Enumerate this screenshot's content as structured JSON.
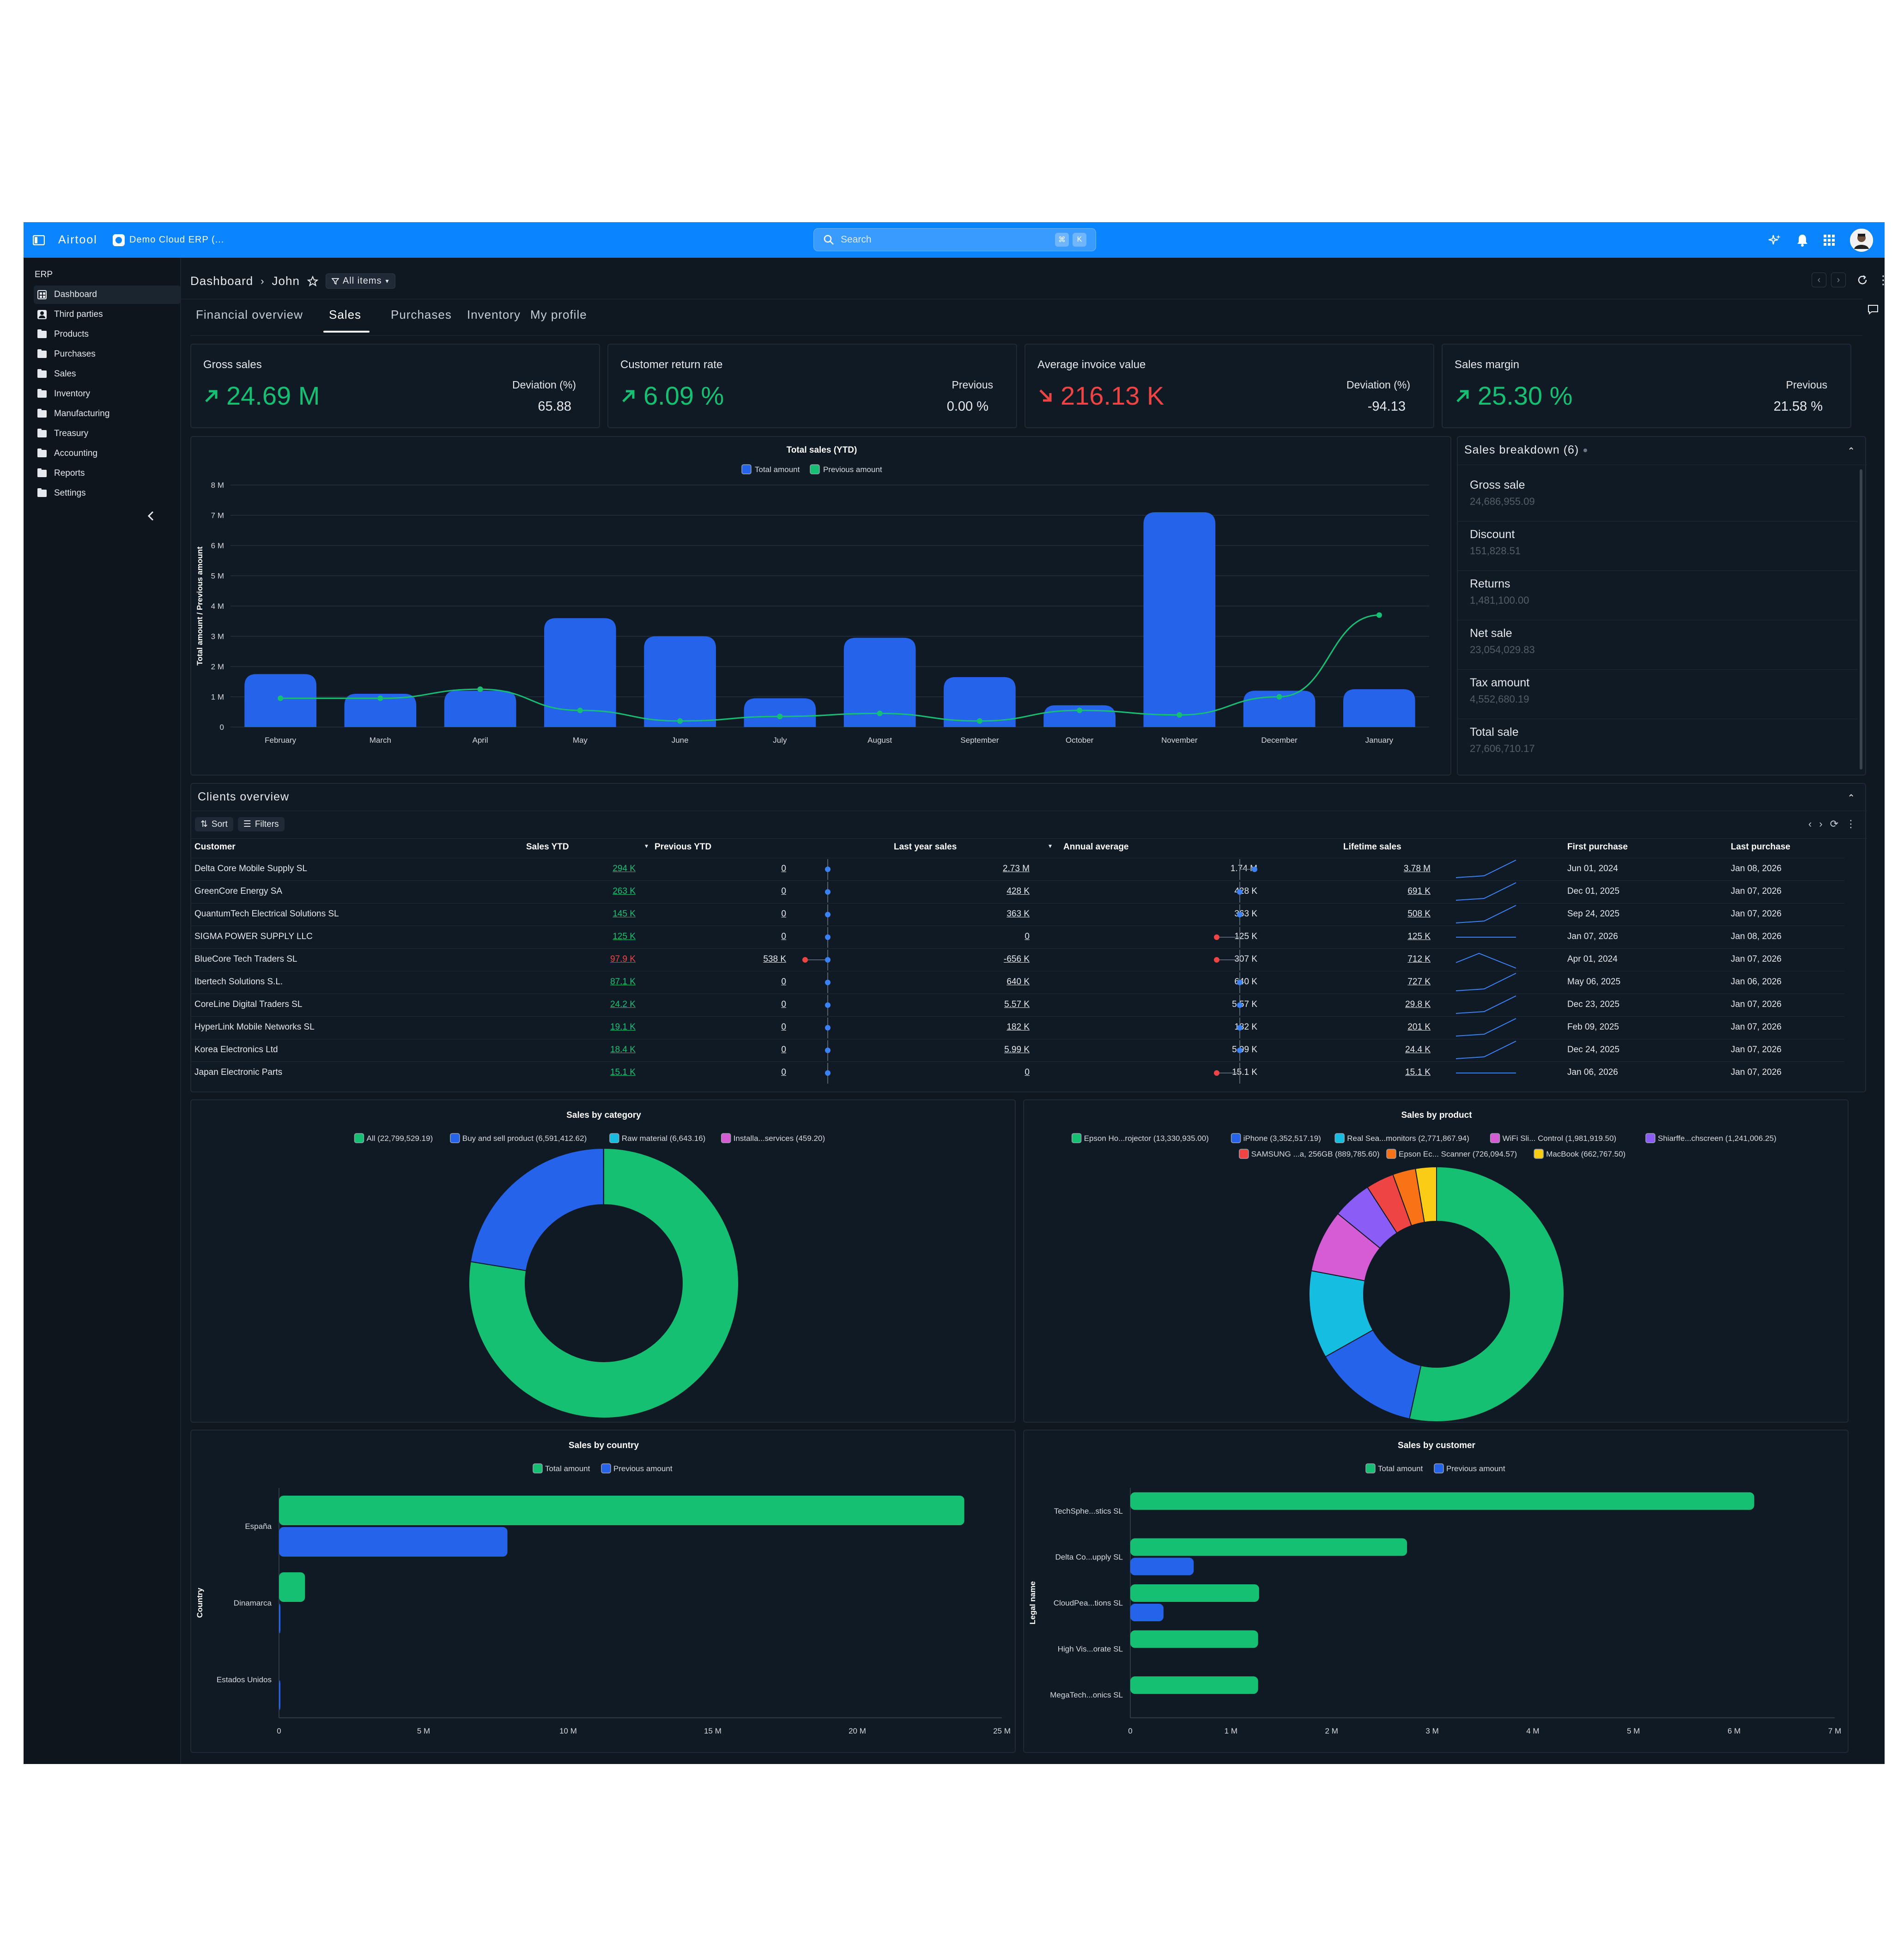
{
  "topbar": {
    "brand": "Airtool",
    "app_name": "Demo Cloud ERP (...",
    "search_placeholder": "Search",
    "kbd1": "⌘",
    "kbd2": "K"
  },
  "sidebar": {
    "section": "ERP",
    "items": [
      {
        "label": "Dashboard",
        "icon": "dashboard-icon"
      },
      {
        "label": "Third parties",
        "icon": "person-icon"
      },
      {
        "label": "Products",
        "icon": "folder-icon"
      },
      {
        "label": "Purchases",
        "icon": "folder-icon"
      },
      {
        "label": "Sales",
        "icon": "folder-icon"
      },
      {
        "label": "Inventory",
        "icon": "folder-icon"
      },
      {
        "label": "Manufacturing",
        "icon": "folder-icon"
      },
      {
        "label": "Treasury",
        "icon": "folder-icon"
      },
      {
        "label": "Accounting",
        "icon": "folder-icon"
      },
      {
        "label": "Reports",
        "icon": "folder-icon"
      },
      {
        "label": "Settings",
        "icon": "folder-icon"
      }
    ]
  },
  "header": {
    "crumb1": "Dashboard",
    "crumb2": "John",
    "filter": "All items"
  },
  "tabs": [
    "Financial overview",
    "Sales",
    "Purchases",
    "Inventory",
    "My profile"
  ],
  "active_tab": "Sales",
  "kpis": [
    {
      "title": "Gross sales",
      "value": "24.69 M",
      "trend": "up",
      "label": "Deviation (%)",
      "number": "65.88"
    },
    {
      "title": "Customer return rate",
      "value": "6.09 %",
      "trend": "up",
      "label": "Previous",
      "number": "0.00 %"
    },
    {
      "title": "Average invoice value",
      "value": "216.13 K",
      "trend": "down",
      "label": "Deviation (%)",
      "number": "-94.13"
    },
    {
      "title": "Sales margin",
      "value": "25.30 %",
      "trend": "up",
      "label": "Previous",
      "number": "21.58 %"
    }
  ],
  "breakdown": {
    "title": "Sales breakdown (6)",
    "items": [
      {
        "name": "Gross sale",
        "value": "24,686,955.09"
      },
      {
        "name": "Discount",
        "value": "151,828.51"
      },
      {
        "name": "Returns",
        "value": "1,481,100.00"
      },
      {
        "name": "Net sale",
        "value": "23,054,029.83"
      },
      {
        "name": "Tax amount",
        "value": "4,552,680.19"
      },
      {
        "name": "Total sale",
        "value": "27,606,710.17"
      }
    ]
  },
  "clients": {
    "title": "Clients overview",
    "sort": "Sort",
    "filters": "Filters",
    "headers": [
      "Customer",
      "Sales YTD",
      "Previous YTD",
      "Last year sales",
      "Annual average",
      "Lifetime sales",
      "First purchase",
      "Last purchase"
    ],
    "rows": [
      {
        "customer": "Delta Core Mobile Supply SL",
        "ytd": "294 K",
        "prev": "0",
        "last": "2.73 M",
        "avg": "1.74 M",
        "life": "3.78 M",
        "first": "Jun 01, 2024",
        "lastp": "Jan 08, 2026"
      },
      {
        "customer": "GreenCore Energy SA",
        "ytd": "263 K",
        "prev": "0",
        "last": "428 K",
        "avg": "428 K",
        "life": "691 K",
        "first": "Dec 01, 2025",
        "lastp": "Jan 07, 2026"
      },
      {
        "customer": "QuantumTech Electrical Solutions SL",
        "ytd": "145 K",
        "prev": "0",
        "last": "363 K",
        "avg": "363 K",
        "life": "508 K",
        "first": "Sep 24, 2025",
        "lastp": "Jan 07, 2026"
      },
      {
        "customer": "SIGMA POWER SUPPLY LLC",
        "ytd": "125 K",
        "prev": "0",
        "last": "0",
        "avg": "125 K",
        "life": "125 K",
        "first": "Jan 07, 2026",
        "lastp": "Jan 08, 2026"
      },
      {
        "customer": "BlueCore Tech Traders SL",
        "ytd": "97.9 K",
        "prev": "538 K",
        "last": "-656 K",
        "avg": "307 K",
        "life": "712 K",
        "first": "Apr 01, 2024",
        "lastp": "Jan 07, 2026"
      },
      {
        "customer": "Ibertech Solutions S.L.",
        "ytd": "87.1 K",
        "prev": "0",
        "last": "640 K",
        "avg": "640 K",
        "life": "727 K",
        "first": "May 06, 2025",
        "lastp": "Jan 06, 2026"
      },
      {
        "customer": "CoreLine Digital Traders SL",
        "ytd": "24.2 K",
        "prev": "0",
        "last": "5.57 K",
        "avg": "5.57 K",
        "life": "29.8 K",
        "first": "Dec 23, 2025",
        "lastp": "Jan 07, 2026"
      },
      {
        "customer": "HyperLink Mobile Networks SL",
        "ytd": "19.1 K",
        "prev": "0",
        "last": "182 K",
        "avg": "182 K",
        "life": "201 K",
        "first": "Feb 09, 2025",
        "lastp": "Jan 07, 2026"
      },
      {
        "customer": "Korea Electronics Ltd",
        "ytd": "18.4 K",
        "prev": "0",
        "last": "5.99 K",
        "avg": "5.99 K",
        "life": "24.4 K",
        "first": "Dec 24, 2025",
        "lastp": "Jan 07, 2026"
      },
      {
        "customer": "Japan Electronic Parts",
        "ytd": "15.1 K",
        "prev": "0",
        "last": "0",
        "avg": "15.1 K",
        "life": "15.1 K",
        "first": "Jan 06, 2026",
        "lastp": "Jan 07, 2026"
      }
    ]
  },
  "colors": {
    "blue": "#2563eb",
    "green": "#16c073",
    "red": "#ef4444",
    "accent": "#0b84ff"
  },
  "chart_data": [
    {
      "type": "bar",
      "title": "Total sales (YTD)",
      "categories": [
        "February",
        "March",
        "April",
        "May",
        "June",
        "July",
        "August",
        "September",
        "October",
        "November",
        "December",
        "January"
      ],
      "series": [
        {
          "name": "Total amount",
          "type": "bar",
          "values": [
            1.75,
            1.1,
            1.2,
            3.6,
            3.0,
            0.95,
            2.95,
            1.65,
            0.72,
            7.1,
            1.2,
            1.25
          ]
        },
        {
          "name": "Previous amount",
          "type": "line",
          "values": [
            0.95,
            0.95,
            1.25,
            0.55,
            0.2,
            0.35,
            0.45,
            0.2,
            0.55,
            0.4,
            1.0,
            3.7
          ]
        }
      ],
      "ylabel": "Total amount / Previous amount",
      "yticks": [
        "0",
        "1 M",
        "2 M",
        "3 M",
        "4 M",
        "5 M",
        "6 M",
        "7 M",
        "8 M"
      ],
      "ylim": [
        0,
        8
      ]
    },
    {
      "type": "pie",
      "title": "Sales by category",
      "labels": [
        "All (22,799,529.19)",
        "Buy and sell product (6,591,412.62)",
        "Raw material (6,643.16)",
        "Installa...services (459.20)"
      ],
      "values": [
        22799529.19,
        6591412.62,
        6643.16,
        459.2
      ],
      "colors": [
        "#16c073",
        "#2563eb",
        "#15bde0",
        "#d65cd6"
      ]
    },
    {
      "type": "pie",
      "title": "Sales by product",
      "labels": [
        "Epson Ho...rojector (13,330,935.00)",
        "iPhone (3,352,517.19)",
        "Real Sea...monitors (2,771,867.94)",
        "WiFi Sli... Control (1,981,919.50)",
        "Shiarffe...chscreen (1,241,006.25)",
        "SAMSUNG ...a, 256GB (889,785.60)",
        "Epson Ec... Scanner (726,094.57)",
        "MacBook (662,767.50)"
      ],
      "values": [
        13330935.0,
        3352517.19,
        2771867.94,
        1981919.5,
        1241006.25,
        889785.6,
        726094.57,
        662767.5
      ],
      "colors": [
        "#16c073",
        "#2563eb",
        "#15bde0",
        "#d65cd6",
        "#8b5cf6",
        "#ef4444",
        "#f97316",
        "#facc15"
      ]
    },
    {
      "type": "bar",
      "orientation": "horizontal",
      "title": "Sales by country",
      "categories": [
        "España",
        "Dinamarca",
        "Estados Unidos"
      ],
      "series": [
        {
          "name": "Total amount",
          "values": [
            23.7,
            0.9,
            0
          ]
        },
        {
          "name": "Previous amount",
          "values": [
            7.9,
            0.05,
            0.02
          ]
        }
      ],
      "ylabel": "Country",
      "xticks": [
        "0",
        "5 M",
        "10 M",
        "15 M",
        "20 M",
        "25 M"
      ],
      "xlim": [
        0,
        25
      ]
    },
    {
      "type": "bar",
      "orientation": "horizontal",
      "title": "Sales by customer",
      "categories": [
        "TechSphe...stics SL",
        "Delta Co...upply SL",
        "CloudPea...tions SL",
        "High Vis...orate SL",
        "MegaTech...onics SL"
      ],
      "series": [
        {
          "name": "Total amount",
          "values": [
            6.2,
            2.75,
            1.28,
            1.27,
            1.27
          ]
        },
        {
          "name": "Previous amount",
          "values": [
            0,
            0.63,
            0.33,
            0,
            0
          ]
        }
      ],
      "ylabel": "Legal name",
      "xticks": [
        "0",
        "1 M",
        "2 M",
        "3 M",
        "4 M",
        "5 M",
        "6 M",
        "7 M"
      ],
      "xlim": [
        0,
        7
      ]
    }
  ]
}
